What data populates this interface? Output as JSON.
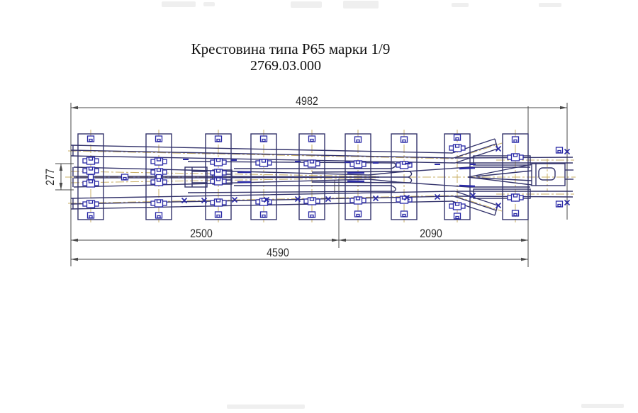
{
  "title": {
    "line1": "Крестовина типа Р65 марки 1/9",
    "line2": "2769.03.000"
  },
  "dimensions": {
    "overall_length": "4982",
    "throat_width": "277",
    "front_length": "2500",
    "rear_length": "2090",
    "assembly_length": "4590"
  },
  "sleepers": {
    "count": 9
  },
  "colors": {
    "rail_outline": "#33336b",
    "bolt_accent": "#2a2aa6",
    "centerline": "#c9af66",
    "dimension_line": "#4a4a4a",
    "dimension_text": "#2e2e2e",
    "title_text": "#111111",
    "background": "#ffffff"
  }
}
